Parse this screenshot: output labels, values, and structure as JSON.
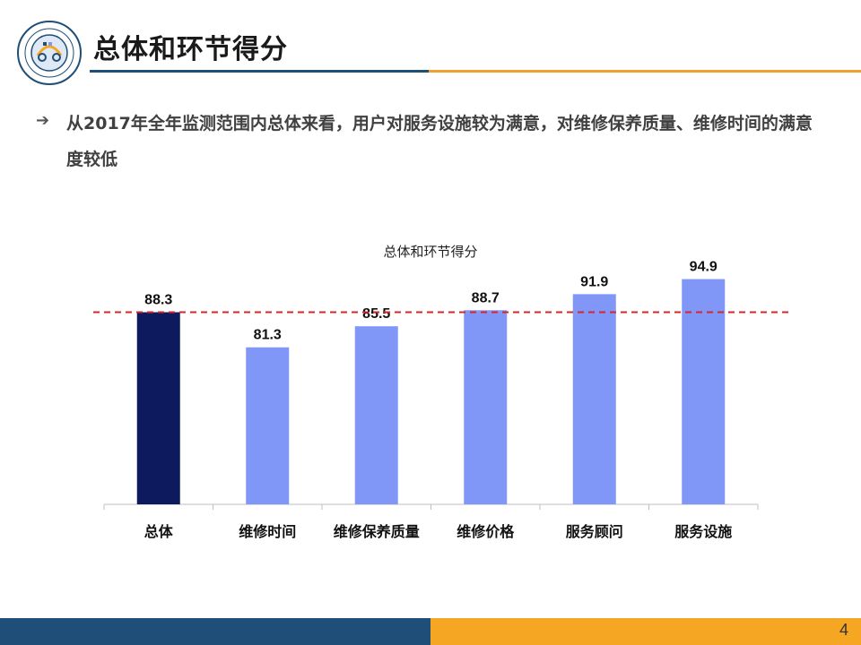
{
  "header": {
    "title": "总体和环节得分"
  },
  "bullet": {
    "text": "从2017年全年监测范围内总体来看，用户对服务设施较为满意，对维修保养质量、维修时间的满意度较低"
  },
  "colors": {
    "brand_blue": "#1f4e79",
    "brand_orange": "#f5a623",
    "overall_bar": "#0d1b5e",
    "segment_bar": "#8097f8",
    "reference_line": "#d62728"
  },
  "chart_data": {
    "type": "bar",
    "title": "总体和环节得分",
    "categories": [
      "总体",
      "维修时间",
      "维修保养质量",
      "维修价格",
      "服务顾问",
      "服务设施"
    ],
    "values": [
      88.3,
      81.3,
      85.5,
      88.7,
      91.9,
      94.9
    ],
    "data_labels": [
      "88.3",
      "81.3",
      "85.5",
      "88.7",
      "91.9",
      "94.9"
    ],
    "reference_line": 88.3,
    "ylim": [
      50,
      100
    ],
    "xlabel": "",
    "ylabel": "",
    "grid": false,
    "legend": "none"
  },
  "footer": {
    "page_number": "4"
  }
}
